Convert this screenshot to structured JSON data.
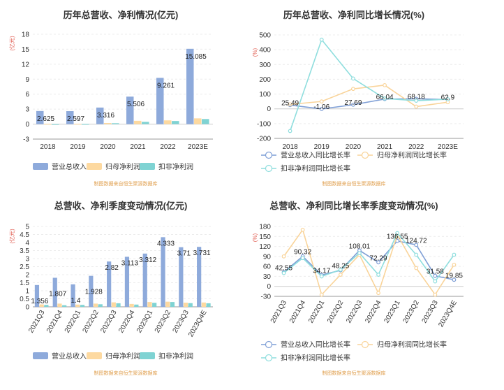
{
  "colors": {
    "revenue": "#8eaadb",
    "net_profit": "#fdd9a0",
    "deducted_profit": "#7fd3d3",
    "revenue_line": "#7f9fd6",
    "net_line": "#f9d49a",
    "deducted_line": "#8fdede"
  },
  "legend": {
    "revenue": "营业总收入",
    "net_profit": "归母净利润",
    "deducted_profit": "扣非净利润",
    "revenue_growth": "营业总收入同比增长率",
    "net_growth": "归母净利润同比增长率",
    "deducted_growth": "扣非净利润同比增长率"
  },
  "source": "制图数据来自恒生聚源数据库",
  "chart_data": [
    {
      "type": "bar",
      "title": "历年总营收、净利情况(亿元)",
      "unit": "亿元",
      "categories": [
        "2018",
        "2019",
        "2020",
        "2021",
        "2022",
        "2023E"
      ],
      "ylim": [
        -3,
        18
      ],
      "yticks": [
        -3,
        0,
        3,
        6,
        9,
        12,
        15,
        18
      ],
      "series": [
        {
          "name": "营业总收入",
          "values": [
            2.625,
            2.597,
            3.316,
            5.506,
            9.261,
            15.085
          ]
        },
        {
          "name": "归母净利润",
          "values": [
            0.05,
            0.06,
            0.22,
            0.66,
            0.75,
            1.15
          ]
        },
        {
          "name": "扣非净利润",
          "values": [
            -0.03,
            0.02,
            0.18,
            0.45,
            0.62,
            1.02
          ]
        }
      ],
      "data_labels": [
        "2.625",
        "2.597",
        "3.316",
        "5.506",
        "9.261",
        "15.085"
      ]
    },
    {
      "type": "line",
      "title": "历年总营收、净利同比增长情况(%)",
      "unit": "%",
      "categories": [
        "2018",
        "2019",
        "2020",
        "2021",
        "2022",
        "2023E"
      ],
      "ylim": [
        -200,
        500
      ],
      "yticks": [
        -200,
        -100,
        0,
        100,
        200,
        300,
        400,
        500
      ],
      "series": [
        {
          "name": "营业总收入同比增长率",
          "values": [
            25.49,
            -1.06,
            27.69,
            66.04,
            68.18,
            62.9
          ]
        },
        {
          "name": "归母净利润同比增长率",
          "values": [
            30,
            50,
            135,
            160,
            15,
            45
          ]
        },
        {
          "name": "扣非净利润同比增长率",
          "values": [
            -150,
            468,
            205,
            70,
            55,
            65
          ]
        }
      ],
      "data_labels": [
        "25.49",
        "-1.06",
        "27.69",
        "66.04",
        "68.18",
        "62.9"
      ]
    },
    {
      "type": "bar",
      "title": "总营收、净利季度变动情况(亿元)",
      "unit": "亿元",
      "categories": [
        "2021Q3",
        "2021Q4",
        "2022Q1",
        "2022Q2",
        "2022Q3",
        "2022Q4",
        "2023Q1",
        "2023Q2",
        "2023Q3",
        "2023Q4E"
      ],
      "ylim": [
        0,
        5
      ],
      "yticks": [
        0,
        0.5,
        1,
        1.5,
        2,
        2.5,
        3,
        3.5,
        4,
        4.5,
        5
      ],
      "series": [
        {
          "name": "营业总收入",
          "values": [
            1.356,
            1.807,
            1.4,
            1.928,
            2.82,
            3.113,
            3.312,
            4.333,
            3.71,
            3.731
          ]
        },
        {
          "name": "归母净利润",
          "values": [
            0.15,
            0.2,
            0.14,
            0.2,
            0.28,
            0.18,
            0.3,
            0.32,
            0.26,
            0.27
          ]
        },
        {
          "name": "扣非净利润",
          "values": [
            0.12,
            0.1,
            0.12,
            0.16,
            0.22,
            0.14,
            0.25,
            0.3,
            0.23,
            0.22
          ]
        }
      ],
      "data_labels": [
        "1.356",
        "1.807",
        "1.4",
        "1.928",
        "2.82",
        "3.113",
        "3.312",
        "4.333",
        "3.71",
        "3.731"
      ]
    },
    {
      "type": "line",
      "title": "总营收、净利同比增长率季度变动情况(%)",
      "unit": "%",
      "categories": [
        "2021Q3",
        "2021Q4",
        "2022Q1",
        "2022Q2",
        "2022Q3",
        "2022Q4",
        "2023Q1",
        "2023Q2",
        "2023Q3",
        "2023Q4E"
      ],
      "ylim": [
        -30,
        180
      ],
      "yticks": [
        -30,
        0,
        30,
        60,
        90,
        120,
        150,
        180
      ],
      "series": [
        {
          "name": "营业总收入同比增长率",
          "values": [
            42.55,
            90.32,
            34.17,
            48.25,
            108.01,
            72.29,
            136.55,
            124.72,
            31.58,
            19.85
          ]
        },
        {
          "name": "归母净利润同比增长率",
          "values": [
            90,
            170,
            -25,
            35,
            95,
            -20,
            155,
            55,
            -25,
            65
          ]
        },
        {
          "name": "扣非净利润同比增长率",
          "values": [
            40,
            85,
            30,
            50,
            100,
            35,
            160,
            95,
            15,
            95
          ]
        }
      ],
      "data_labels": [
        "42.55",
        "90.32",
        "34.17",
        "48.25",
        "108.01",
        "72.29",
        "136.55",
        "124.72",
        "31.58",
        "19.85"
      ]
    }
  ]
}
